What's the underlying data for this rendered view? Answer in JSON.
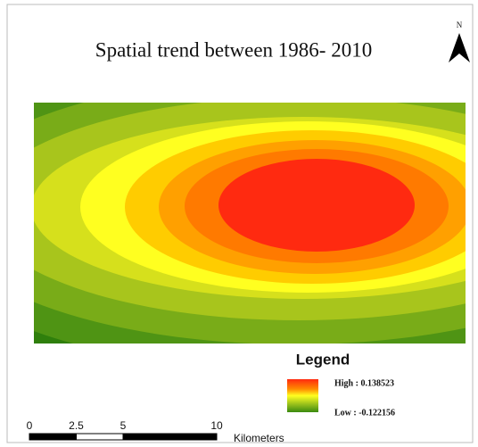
{
  "title": "Spatial trend between 1986- 2010",
  "north_label": "N",
  "legend": {
    "title": "Legend",
    "high": "High : 0.138523",
    "low": "Low : -0.122156"
  },
  "scale_bar": {
    "ticks": [
      0,
      2.5,
      5,
      10
    ],
    "unit": "Kilometers"
  }
}
